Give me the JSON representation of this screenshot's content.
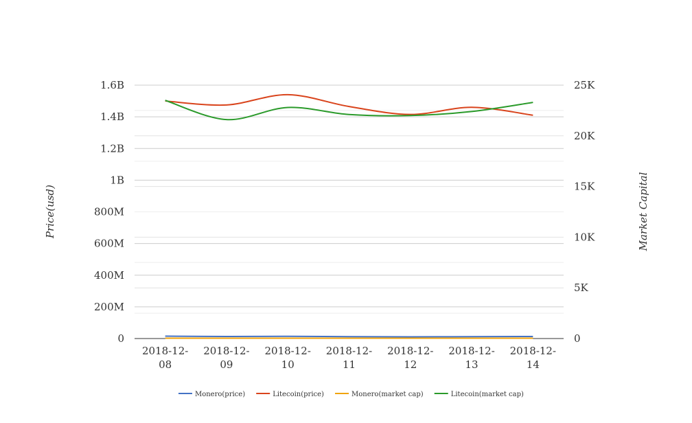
{
  "chart_data": {
    "type": "line",
    "title": "",
    "categories": [
      "2018-12-08",
      "2018-12-09",
      "2018-12-10",
      "2018-12-11",
      "2018-12-12",
      "2018-12-13",
      "2018-12-14"
    ],
    "category_lines": [
      [
        "2018-12-",
        "08"
      ],
      [
        "2018-12-",
        "09"
      ],
      [
        "2018-12-",
        "10"
      ],
      [
        "2018-12-",
        "11"
      ],
      [
        "2018-12-",
        "12"
      ],
      [
        "2018-12-",
        "13"
      ],
      [
        "2018-12-",
        "14"
      ]
    ],
    "left_axis": {
      "label": "Price(usd)",
      "range": [
        0,
        1600000000
      ],
      "ticks": [
        {
          "value": 0,
          "label": "0"
        },
        {
          "value": 200000000,
          "label": "200M"
        },
        {
          "value": 400000000,
          "label": "400M"
        },
        {
          "value": 600000000,
          "label": "600M"
        },
        {
          "value": 800000000,
          "label": "800M"
        },
        {
          "value": 1000000000,
          "label": "1B"
        },
        {
          "value": 1200000000,
          "label": "1.2B"
        },
        {
          "value": 1400000000,
          "label": "1.4B"
        },
        {
          "value": 1600000000,
          "label": "1.6B"
        }
      ]
    },
    "right_axis": {
      "label": "Market Capital",
      "range": [
        0,
        25000
      ],
      "ticks": [
        {
          "value": 0,
          "label": "0"
        },
        {
          "value": 5000,
          "label": "5K"
        },
        {
          "value": 10000,
          "label": "10K"
        },
        {
          "value": 15000,
          "label": "15K"
        },
        {
          "value": 20000,
          "label": "20K"
        },
        {
          "value": 25000,
          "label": "25K"
        }
      ]
    },
    "grid": true,
    "legend_position": "bottom",
    "series": [
      {
        "name": "Monero(price)",
        "axis": "left",
        "color": "#4472c4",
        "values": [
          15000000,
          13000000,
          14000000,
          12000000,
          11000000,
          12000000,
          13000000
        ]
      },
      {
        "name": "Litecoin(price)",
        "axis": "left",
        "color": "#d9441c",
        "values": [
          1500000000,
          1475000000,
          1540000000,
          1465000000,
          1415000000,
          1460000000,
          1410000000
        ]
      },
      {
        "name": "Monero(market cap)",
        "axis": "right",
        "color": "#f0a30a",
        "values": [
          30,
          30,
          30,
          30,
          30,
          30,
          30
        ]
      },
      {
        "name": "Litecoin(market cap)",
        "axis": "right",
        "color": "#2a9a2a",
        "values": [
          23500,
          21600,
          22800,
          22100,
          22000,
          22400,
          23300
        ]
      }
    ]
  }
}
